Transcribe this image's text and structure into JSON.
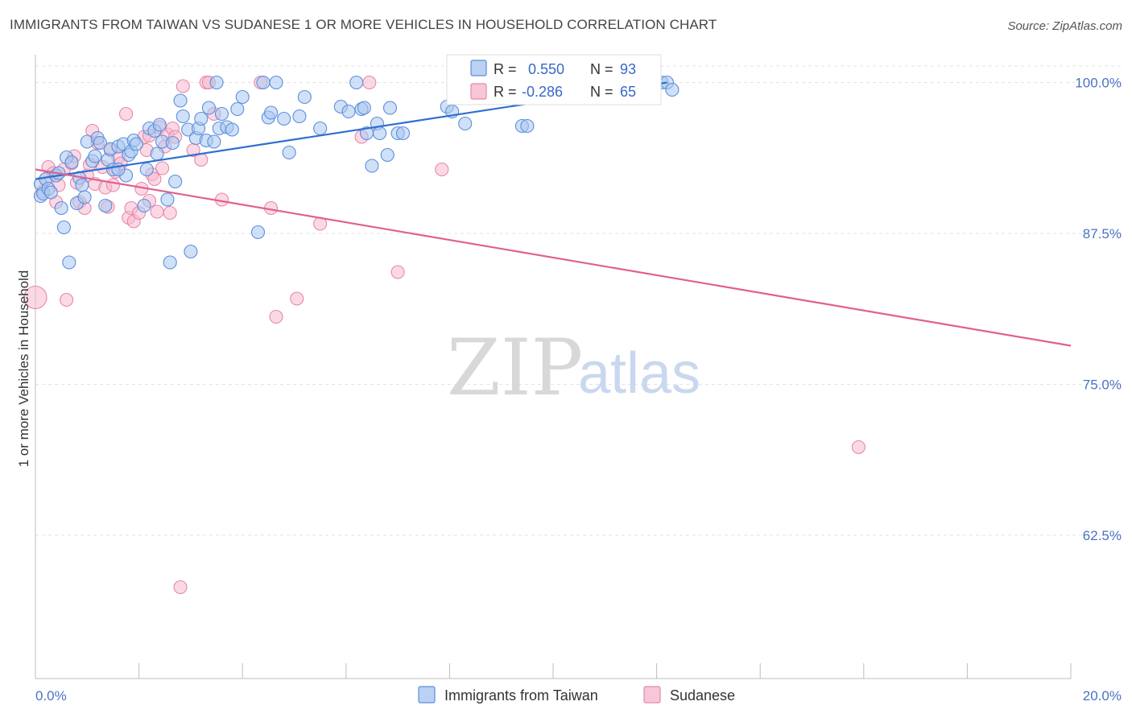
{
  "title": "IMMIGRANTS FROM TAIWAN VS SUDANESE 1 OR MORE VEHICLES IN HOUSEHOLD CORRELATION CHART",
  "source": "Source: ZipAtlas.com",
  "watermark": {
    "zip": "ZIP",
    "atlas": "atlas"
  },
  "colors": {
    "taiwan_fill": "#aac6f0",
    "taiwan_stroke": "#5b8fdb",
    "taiwan_line": "#2f6fd0",
    "sudanese_fill": "#f5b9cf",
    "sudanese_stroke": "#e887aa",
    "sudanese_line": "#e0608e",
    "grid": "#e3e3e3",
    "tick_label": "#4a72c4"
  },
  "legend": {
    "rows": [
      {
        "r_label": "R =",
        "r_value": "0.550",
        "n_label": "N =",
        "n_value": "93"
      },
      {
        "r_label": "R =",
        "r_value": "-0.286",
        "n_label": "N =",
        "n_value": "65"
      }
    ]
  },
  "chart_data": {
    "type": "scatter",
    "title": "IMMIGRANTS FROM TAIWAN VS SUDANESE 1 OR MORE VEHICLES IN HOUSEHOLD CORRELATION CHART",
    "xlabel": "",
    "ylabel": "1 or more Vehicles in Household",
    "xlim": [
      0,
      20
    ],
    "ylim": [
      50.5,
      101.5
    ],
    "x_tick_labels": [
      "0.0%",
      "20.0%"
    ],
    "y_ticks": [
      62.5,
      75.0,
      87.5,
      100.0
    ],
    "y_tick_labels": [
      "62.5%",
      "75.0%",
      "87.5%",
      "100.0%"
    ],
    "grid": true,
    "legend_position": "top-center",
    "series": [
      {
        "name": "Immigrants from Taiwan",
        "R": 0.55,
        "N": 93,
        "trend": {
          "x": [
            0.0,
            12.2
          ],
          "y": [
            92.0,
            100.0
          ]
        },
        "points": [
          [
            0.1,
            90.6
          ],
          [
            0.1,
            91.6
          ],
          [
            0.15,
            90.8
          ],
          [
            0.2,
            92.0
          ],
          [
            0.25,
            91.2
          ],
          [
            0.3,
            90.9
          ],
          [
            0.4,
            92.3
          ],
          [
            0.45,
            92.5
          ],
          [
            0.5,
            89.6
          ],
          [
            0.55,
            88.0
          ],
          [
            0.6,
            93.8
          ],
          [
            0.65,
            85.1
          ],
          [
            0.7,
            93.4
          ],
          [
            0.8,
            90.0
          ],
          [
            0.85,
            92.1
          ],
          [
            0.9,
            91.5
          ],
          [
            0.95,
            90.5
          ],
          [
            1.0,
            95.1
          ],
          [
            1.1,
            93.5
          ],
          [
            1.15,
            93.9
          ],
          [
            1.2,
            95.4
          ],
          [
            1.25,
            95.0
          ],
          [
            1.35,
            89.8
          ],
          [
            1.4,
            93.6
          ],
          [
            1.45,
            94.5
          ],
          [
            1.5,
            92.8
          ],
          [
            1.6,
            94.7
          ],
          [
            1.7,
            94.9
          ],
          [
            1.75,
            92.3
          ],
          [
            1.8,
            94.0
          ],
          [
            1.85,
            94.3
          ],
          [
            1.9,
            95.2
          ],
          [
            1.95,
            94.9
          ],
          [
            2.1,
            89.8
          ],
          [
            2.15,
            92.8
          ],
          [
            2.2,
            96.2
          ],
          [
            2.3,
            96.0
          ],
          [
            2.35,
            94.1
          ],
          [
            2.4,
            96.5
          ],
          [
            2.45,
            95.1
          ],
          [
            2.55,
            90.3
          ],
          [
            2.6,
            85.1
          ],
          [
            2.65,
            95.0
          ],
          [
            2.7,
            91.8
          ],
          [
            2.8,
            98.5
          ],
          [
            2.85,
            97.2
          ],
          [
            2.95,
            96.1
          ],
          [
            3.0,
            86.0
          ],
          [
            3.1,
            95.4
          ],
          [
            3.15,
            96.2
          ],
          [
            3.2,
            97.0
          ],
          [
            3.3,
            95.2
          ],
          [
            3.35,
            97.9
          ],
          [
            3.45,
            95.1
          ],
          [
            3.5,
            100.0
          ],
          [
            3.55,
            96.2
          ],
          [
            3.6,
            97.4
          ],
          [
            3.7,
            96.3
          ],
          [
            3.9,
            97.8
          ],
          [
            4.0,
            98.8
          ],
          [
            4.3,
            87.6
          ],
          [
            4.4,
            100.0
          ],
          [
            4.5,
            97.1
          ],
          [
            4.55,
            97.5
          ],
          [
            4.65,
            100.0
          ],
          [
            4.8,
            97.0
          ],
          [
            4.9,
            94.2
          ],
          [
            5.1,
            97.2
          ],
          [
            5.2,
            98.8
          ],
          [
            5.5,
            96.2
          ],
          [
            5.9,
            98.0
          ],
          [
            6.05,
            97.6
          ],
          [
            6.2,
            100.0
          ],
          [
            6.3,
            97.8
          ],
          [
            6.35,
            97.9
          ],
          [
            6.4,
            95.8
          ],
          [
            6.5,
            93.1
          ],
          [
            6.6,
            96.6
          ],
          [
            6.65,
            95.8
          ],
          [
            6.8,
            94.0
          ],
          [
            6.85,
            97.9
          ],
          [
            7.0,
            95.8
          ],
          [
            7.1,
            95.8
          ],
          [
            7.95,
            98.0
          ],
          [
            8.05,
            97.6
          ],
          [
            8.3,
            96.6
          ],
          [
            9.4,
            96.4
          ],
          [
            9.5,
            96.4
          ],
          [
            12.1,
            100.0
          ],
          [
            12.2,
            100.0
          ],
          [
            12.3,
            99.4
          ],
          [
            1.6,
            92.8
          ],
          [
            3.8,
            96.1
          ]
        ]
      },
      {
        "name": "Sudanese",
        "R": -0.286,
        "N": 65,
        "trend": {
          "x": [
            0.0,
            20.0
          ],
          "y": [
            92.8,
            78.2
          ]
        },
        "points": [
          [
            0.0,
            82.2
          ],
          [
            0.15,
            91.0
          ],
          [
            0.2,
            92.0
          ],
          [
            0.25,
            93.0
          ],
          [
            0.35,
            92.5
          ],
          [
            0.4,
            90.1
          ],
          [
            0.45,
            91.5
          ],
          [
            0.55,
            92.8
          ],
          [
            0.6,
            82.0
          ],
          [
            0.7,
            93.3
          ],
          [
            0.75,
            93.9
          ],
          [
            0.8,
            91.7
          ],
          [
            0.85,
            90.1
          ],
          [
            0.95,
            89.6
          ],
          [
            1.0,
            92.3
          ],
          [
            1.05,
            93.2
          ],
          [
            1.1,
            96.0
          ],
          [
            1.15,
            91.6
          ],
          [
            1.2,
            95.0
          ],
          [
            1.3,
            93.0
          ],
          [
            1.35,
            91.3
          ],
          [
            1.4,
            89.7
          ],
          [
            1.45,
            94.4
          ],
          [
            1.5,
            91.5
          ],
          [
            1.55,
            92.6
          ],
          [
            1.6,
            93.8
          ],
          [
            1.65,
            93.3
          ],
          [
            1.75,
            97.4
          ],
          [
            1.8,
            88.8
          ],
          [
            1.85,
            89.6
          ],
          [
            1.9,
            88.5
          ],
          [
            2.0,
            89.2
          ],
          [
            2.05,
            91.2
          ],
          [
            2.1,
            95.5
          ],
          [
            2.15,
            94.4
          ],
          [
            2.2,
            90.2
          ],
          [
            2.25,
            92.4
          ],
          [
            2.3,
            92.0
          ],
          [
            2.35,
            89.3
          ],
          [
            2.4,
            96.3
          ],
          [
            2.45,
            92.9
          ],
          [
            2.5,
            94.7
          ],
          [
            2.55,
            95.7
          ],
          [
            2.6,
            89.2
          ],
          [
            2.65,
            96.2
          ],
          [
            2.7,
            95.5
          ],
          [
            2.8,
            58.2
          ],
          [
            2.85,
            99.7
          ],
          [
            3.05,
            94.4
          ],
          [
            3.2,
            93.6
          ],
          [
            3.3,
            100.0
          ],
          [
            3.35,
            100.0
          ],
          [
            3.45,
            97.4
          ],
          [
            3.6,
            90.3
          ],
          [
            4.35,
            100.0
          ],
          [
            4.55,
            89.6
          ],
          [
            4.65,
            80.6
          ],
          [
            5.05,
            82.1
          ],
          [
            5.5,
            88.3
          ],
          [
            6.3,
            95.5
          ],
          [
            6.45,
            100.0
          ],
          [
            7.0,
            84.3
          ],
          [
            7.85,
            92.8
          ],
          [
            15.9,
            69.8
          ],
          [
            2.2,
            95.6
          ]
        ]
      }
    ]
  }
}
